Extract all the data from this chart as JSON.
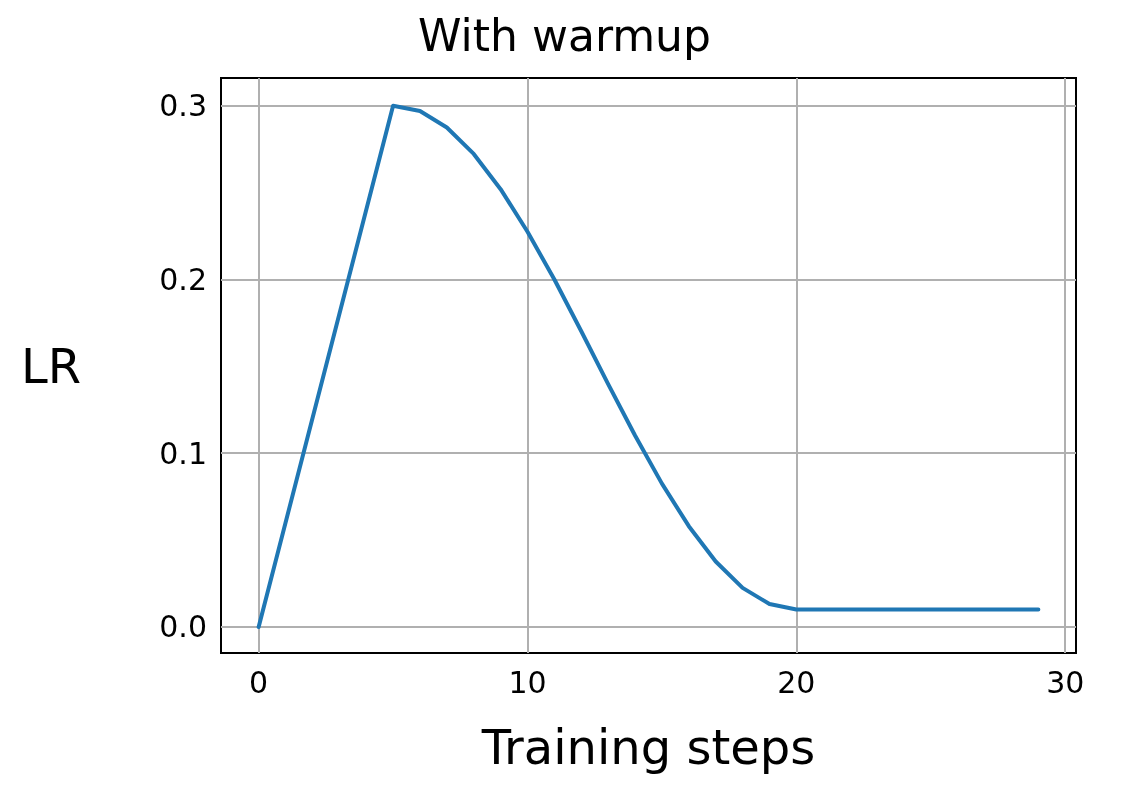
{
  "chart_data": {
    "type": "line",
    "title": "With warmup",
    "xlabel": "Training steps",
    "ylabel": "LR",
    "x": [
      0,
      1,
      2,
      3,
      4,
      5,
      6,
      7,
      8,
      9,
      10,
      11,
      12,
      13,
      14,
      15,
      16,
      17,
      18,
      19,
      20,
      21,
      22,
      23,
      24,
      25,
      26,
      27,
      28,
      29
    ],
    "series": [
      {
        "color": "#1f77b4",
        "values": [
          0,
          0.06,
          0.12,
          0.18,
          0.24,
          0.3,
          0.297,
          0.2875,
          0.2723,
          0.252,
          0.2275,
          0.2,
          0.1702,
          0.1398,
          0.1102,
          0.0825,
          0.058,
          0.0377,
          0.0225,
          0.0132,
          0.01,
          0.01,
          0.01,
          0.01,
          0.01,
          0.01,
          0.01,
          0.01,
          0.01,
          0.01
        ]
      }
    ],
    "xlim": [
      -1.4,
      30.4
    ],
    "ylim": [
      -0.015,
      0.316
    ],
    "xticks": [
      0,
      10,
      20,
      30
    ],
    "yticks": [
      {
        "value": 0,
        "label": "0.0"
      },
      0.1,
      0.2,
      0.3
    ],
    "grid": true,
    "marker": "none",
    "line_style": "solid"
  }
}
